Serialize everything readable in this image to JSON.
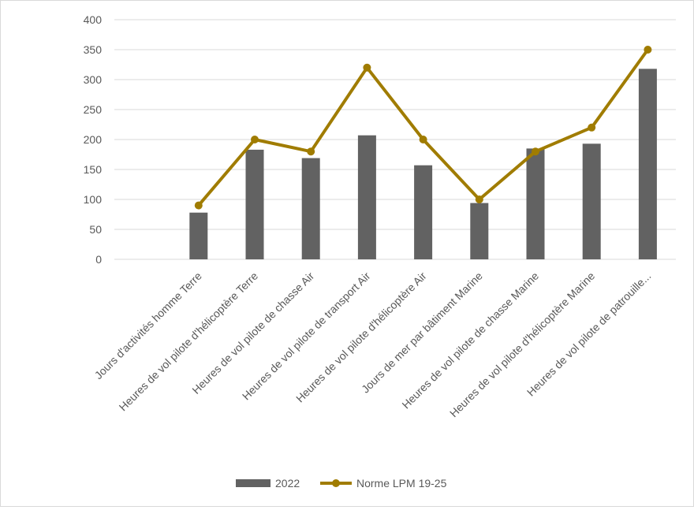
{
  "chart_data": {
    "type": "bar",
    "title": "",
    "xlabel": "",
    "ylabel": "",
    "ylim": [
      0,
      400
    ],
    "yticks": [
      0,
      50,
      100,
      150,
      200,
      250,
      300,
      350,
      400
    ],
    "grid": true,
    "legend_position": "bottom",
    "categories": [
      "Jours d'activités homme Terre",
      "Heures de vol pilote d'hélicoptère Terre",
      "Heures de vol pilote de chasse Air",
      "Heures de vol pilote de transport Air",
      "Heures de vol pilote d'hélicoptère Air",
      "Jours de mer par bâtiment Marine",
      "Heures de vol pilote de chasse Marine",
      "Heures de vol pilote d'hélicoptère Marine",
      "Heures de vol pilote de patrouille..."
    ],
    "series": [
      {
        "name": "2022",
        "kind": "bar",
        "color": "#626262",
        "values": [
          78,
          183,
          169,
          207,
          157,
          94,
          185,
          193,
          318
        ]
      },
      {
        "name": "Norme LPM 19-25",
        "kind": "line",
        "color": "#a07c00",
        "values": [
          90,
          200,
          180,
          320,
          200,
          100,
          180,
          220,
          350
        ]
      }
    ]
  }
}
